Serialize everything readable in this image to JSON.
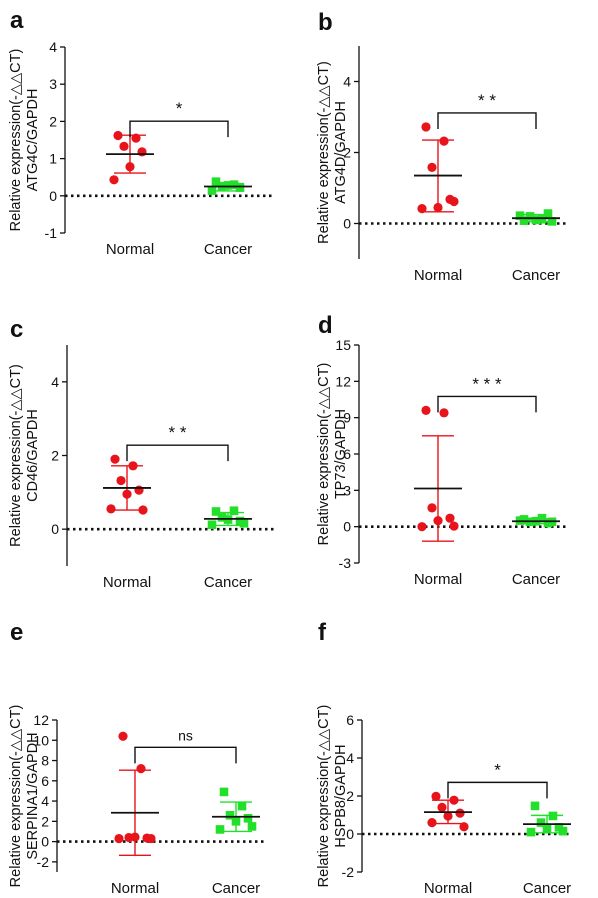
{
  "colors": {
    "normal": "#e8141b",
    "cancer": "#22e02a",
    "axis": "#111111"
  },
  "chart_data": [
    {
      "type": "scatter",
      "panel_letter": "a",
      "ylabel_top": "Relative expression(-△△CT)",
      "ylabel_bottom": "ATG4C/GAPDH",
      "categories": [
        "Normal",
        "Cancer"
      ],
      "ylim": [
        -1,
        4
      ],
      "yticks": [
        -1,
        0,
        1,
        2,
        3,
        4
      ],
      "significance": "*",
      "series": [
        {
          "name": "Normal",
          "marker": "circle",
          "mean": 1.12,
          "sd_upper": 1.63,
          "sd_lower": 0.61,
          "values": [
            1.62,
            1.55,
            1.33,
            1.18,
            0.78,
            0.43
          ]
        },
        {
          "name": "Cancer",
          "marker": "square",
          "mean": 0.25,
          "sd_upper": 0.33,
          "sd_lower": 0.13,
          "values": [
            0.38,
            0.3,
            0.26,
            0.22,
            0.28,
            0.14
          ]
        }
      ]
    },
    {
      "type": "scatter",
      "panel_letter": "b",
      "ylabel_top": "Relative expression(-△△CT)",
      "ylabel_bottom": "ATG4D/GAPDH",
      "categories": [
        "Normal",
        "Cancer"
      ],
      "ylim": [
        -1,
        5
      ],
      "yticks": [
        0,
        2,
        4
      ],
      "significance": "* *",
      "series": [
        {
          "name": "Normal",
          "marker": "circle",
          "mean": 1.35,
          "sd_upper": 2.35,
          "sd_lower": 0.33,
          "values": [
            2.72,
            2.32,
            1.58,
            0.68,
            0.45,
            0.42,
            0.62
          ]
        },
        {
          "name": "Cancer",
          "marker": "square",
          "mean": 0.15,
          "sd_upper": 0.25,
          "sd_lower": 0.05,
          "values": [
            0.08,
            0.12,
            0.2,
            0.28,
            0.1,
            0.22,
            0.06
          ]
        }
      ]
    },
    {
      "type": "scatter",
      "panel_letter": "c",
      "ylabel_top": "Relative expression(-△△CT)",
      "ylabel_bottom": "CD46/GAPDH",
      "categories": [
        "Normal",
        "Cancer"
      ],
      "ylim": [
        -1,
        5
      ],
      "yticks": [
        0,
        2,
        4
      ],
      "significance": "* *",
      "series": [
        {
          "name": "Normal",
          "marker": "circle",
          "mean": 1.12,
          "sd_upper": 1.72,
          "sd_lower": 0.52,
          "values": [
            1.9,
            1.72,
            1.32,
            1.06,
            0.95,
            0.55,
            0.52
          ]
        },
        {
          "name": "Cancer",
          "marker": "square",
          "mean": 0.28,
          "sd_upper": 0.45,
          "sd_lower": 0.1,
          "values": [
            0.48,
            0.5,
            0.32,
            0.22,
            0.26,
            0.12,
            0.16
          ]
        }
      ]
    },
    {
      "type": "scatter",
      "panel_letter": "d",
      "ylabel_top": "Relative expression(-△△CT)",
      "ylabel_bottom": "TP73/GAPDH",
      "categories": [
        "Normal",
        "Cancer"
      ],
      "ylim": [
        -3,
        15
      ],
      "yticks": [
        -3,
        0,
        3,
        6,
        9,
        12,
        15
      ],
      "significance": "* * *",
      "series": [
        {
          "name": "Normal",
          "marker": "circle",
          "mean": 3.15,
          "sd_upper": 7.5,
          "sd_lower": -1.2,
          "values": [
            9.6,
            9.4,
            1.55,
            0.7,
            0.5,
            0.0,
            0.05
          ]
        },
        {
          "name": "Cancer",
          "marker": "square",
          "mean": 0.45,
          "sd_upper": 0.65,
          "sd_lower": 0.25,
          "values": [
            0.6,
            0.7,
            0.4,
            0.3,
            0.45,
            0.5,
            0.4
          ]
        }
      ]
    },
    {
      "type": "scatter",
      "panel_letter": "e",
      "ylabel_top": "Relative expression(-△△CT)",
      "ylabel_bottom": "SERPINA1/GAPDH",
      "categories": [
        "Normal",
        "Cancer"
      ],
      "ylim": [
        -3,
        12
      ],
      "yticks": [
        -2,
        0,
        2,
        4,
        6,
        8,
        10,
        12
      ],
      "significance": "ns",
      "series": [
        {
          "name": "Normal",
          "marker": "circle",
          "mean": 2.85,
          "sd_upper": 7.05,
          "sd_lower": -1.35,
          "values": [
            10.4,
            7.2,
            0.4,
            0.35,
            0.45,
            0.3,
            0.3
          ]
        },
        {
          "name": "Cancer",
          "marker": "square",
          "mean": 2.45,
          "sd_upper": 3.9,
          "sd_lower": 1.0,
          "values": [
            4.9,
            3.5,
            2.6,
            2.3,
            2.0,
            1.2,
            1.5
          ]
        }
      ]
    },
    {
      "type": "scatter",
      "panel_letter": "f",
      "ylabel_top": "Relative expression(-△△CT)",
      "ylabel_bottom": "HSPB8/GAPDH",
      "categories": [
        "Normal",
        "Cancer"
      ],
      "ylim": [
        -2,
        6
      ],
      "yticks": [
        -2,
        0,
        2,
        4,
        6
      ],
      "significance": "*",
      "series": [
        {
          "name": "Normal",
          "marker": "circle",
          "mean": 1.15,
          "sd_upper": 1.78,
          "sd_lower": 0.55,
          "values": [
            1.98,
            1.78,
            1.4,
            1.1,
            0.95,
            0.6,
            0.38
          ]
        },
        {
          "name": "Cancer",
          "marker": "square",
          "mean": 0.52,
          "sd_upper": 0.98,
          "sd_lower": 0.06,
          "values": [
            1.48,
            0.95,
            0.6,
            0.35,
            0.3,
            0.1,
            0.15
          ]
        }
      ]
    }
  ]
}
